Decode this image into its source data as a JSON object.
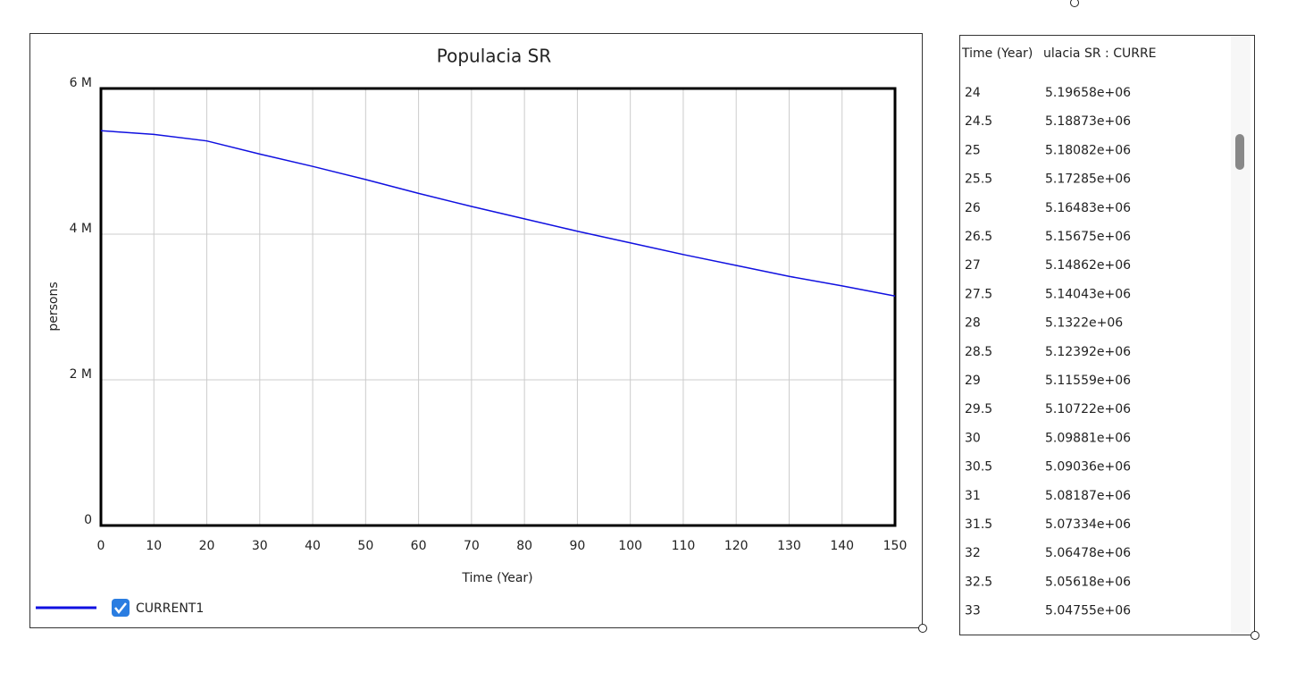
{
  "chart_data": {
    "type": "line",
    "title": "Populacia SR",
    "xlabel": "Time (Year)",
    "ylabel": "persons",
    "x": [
      0,
      10,
      20,
      30,
      40,
      50,
      60,
      70,
      80,
      90,
      100,
      110,
      120,
      130,
      140,
      150
    ],
    "series": [
      {
        "name": "CURRENT1",
        "color": "#1010e0",
        "values": [
          5420000,
          5370000,
          5280000,
          5100000,
          4930000,
          4750000,
          4560000,
          4380000,
          4210000,
          4040000,
          3880000,
          3720000,
          3570000,
          3420000,
          3290000,
          3150000
        ]
      }
    ],
    "xlim": [
      0,
      150
    ],
    "xticks": [
      0,
      10,
      20,
      30,
      40,
      50,
      60,
      70,
      80,
      90,
      100,
      110,
      120,
      130,
      140,
      150
    ],
    "ylim": [
      0,
      6000000
    ],
    "yticks": [
      0,
      {
        "value": 2000000,
        "label": "2 M"
      },
      {
        "value": 4000000,
        "label": "4 M"
      },
      {
        "value": 6000000,
        "label": "6 M"
      }
    ],
    "grid": true
  },
  "table": {
    "header": [
      "Time (Year)",
      "ulacia SR : CURRE"
    ],
    "rows": [
      [
        "24",
        "5.19658e+06"
      ],
      [
        "24.5",
        "5.18873e+06"
      ],
      [
        "25",
        "5.18082e+06"
      ],
      [
        "25.5",
        "5.17285e+06"
      ],
      [
        "26",
        "5.16483e+06"
      ],
      [
        "26.5",
        "5.15675e+06"
      ],
      [
        "27",
        "5.14862e+06"
      ],
      [
        "27.5",
        "5.14043e+06"
      ],
      [
        "28",
        "5.1322e+06"
      ],
      [
        "28.5",
        "5.12392e+06"
      ],
      [
        "29",
        "5.11559e+06"
      ],
      [
        "29.5",
        "5.10722e+06"
      ],
      [
        "30",
        "5.09881e+06"
      ],
      [
        "30.5",
        "5.09036e+06"
      ],
      [
        "31",
        "5.08187e+06"
      ],
      [
        "31.5",
        "5.07334e+06"
      ],
      [
        "32",
        "5.06478e+06"
      ],
      [
        "32.5",
        "5.05618e+06"
      ],
      [
        "33",
        "5.04755e+06"
      ]
    ]
  }
}
